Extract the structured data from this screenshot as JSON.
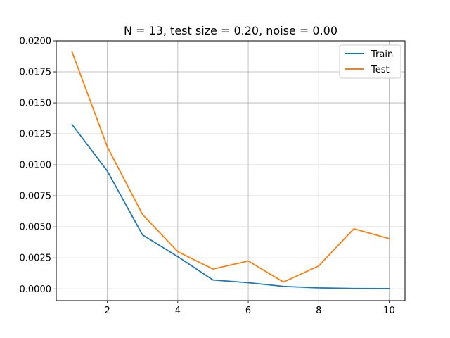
{
  "chart_data": {
    "type": "line",
    "title": "N = 13, test size = 0.20, noise = 0.00",
    "xlabel": "",
    "ylabel": "",
    "x": [
      1,
      2,
      3,
      4,
      5,
      6,
      7,
      8,
      9,
      10
    ],
    "series": [
      {
        "name": "Train",
        "color": "#1f77b4",
        "values": [
          0.01325,
          0.0095,
          0.00435,
          0.0026,
          0.00072,
          0.0005,
          0.0002,
          8e-05,
          3e-05,
          2e-05
        ]
      },
      {
        "name": "Test",
        "color": "#ff7f0e",
        "values": [
          0.0191,
          0.01145,
          0.006,
          0.003,
          0.0016,
          0.00225,
          0.00055,
          0.00185,
          0.00485,
          0.00405
        ]
      }
    ],
    "xlim": [
      0.55,
      10.45
    ],
    "ylim": [
      -0.00095,
      0.02
    ],
    "xticks": [
      2,
      4,
      6,
      8,
      10
    ],
    "xtick_labels": [
      "2",
      "4",
      "6",
      "8",
      "10"
    ],
    "yticks": [
      0,
      0.0025,
      0.005,
      0.0075,
      0.01,
      0.0125,
      0.015,
      0.0175,
      0.02
    ],
    "ytick_labels": [
      "0.0000",
      "0.0025",
      "0.0050",
      "0.0075",
      "0.0100",
      "0.0125",
      "0.0150",
      "0.0175",
      "0.0200"
    ],
    "grid": true,
    "legend_position": "top-right"
  }
}
